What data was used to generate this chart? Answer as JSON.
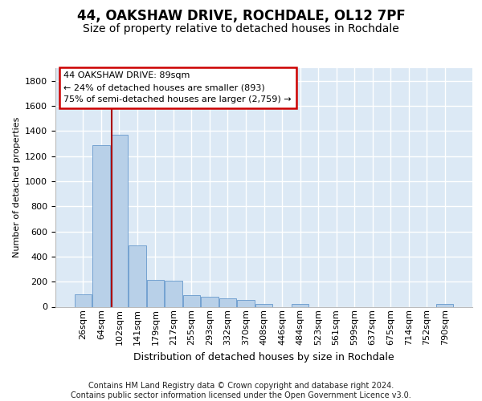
{
  "title1": "44, OAKSHAW DRIVE, ROCHDALE, OL12 7PF",
  "title2": "Size of property relative to detached houses in Rochdale",
  "xlabel": "Distribution of detached houses by size in Rochdale",
  "ylabel": "Number of detached properties",
  "footer1": "Contains HM Land Registry data © Crown copyright and database right 2024.",
  "footer2": "Contains public sector information licensed under the Open Government Licence v3.0.",
  "categories": [
    "26sqm",
    "64sqm",
    "102sqm",
    "141sqm",
    "179sqm",
    "217sqm",
    "255sqm",
    "293sqm",
    "332sqm",
    "370sqm",
    "408sqm",
    "446sqm",
    "484sqm",
    "523sqm",
    "561sqm",
    "599sqm",
    "637sqm",
    "675sqm",
    "714sqm",
    "752sqm",
    "790sqm"
  ],
  "values": [
    100,
    1290,
    1370,
    490,
    215,
    210,
    95,
    80,
    70,
    55,
    25,
    0,
    20,
    0,
    0,
    0,
    0,
    0,
    0,
    0,
    20
  ],
  "bar_color": "#b8d0e8",
  "bar_edge_color": "#6699cc",
  "annotation_text1": "44 OAKSHAW DRIVE: 89sqm",
  "annotation_text2": "← 24% of detached houses are smaller (893)",
  "annotation_text3": "75% of semi-detached houses are larger (2,759) →",
  "annotation_box_facecolor": "#ffffff",
  "annotation_border_color": "#cc0000",
  "vline_color": "#aa0000",
  "vline_x": 1.575,
  "ylim": [
    0,
    1900
  ],
  "yticks": [
    0,
    200,
    400,
    600,
    800,
    1000,
    1200,
    1400,
    1600,
    1800
  ],
  "bg_color": "#dce9f5",
  "grid_color": "#ffffff",
  "font_size_title1": 12,
  "font_size_title2": 10,
  "font_size_ylabel": 8,
  "font_size_xlabel": 9,
  "font_size_tick": 8,
  "font_size_ann": 8,
  "font_size_footer": 7
}
